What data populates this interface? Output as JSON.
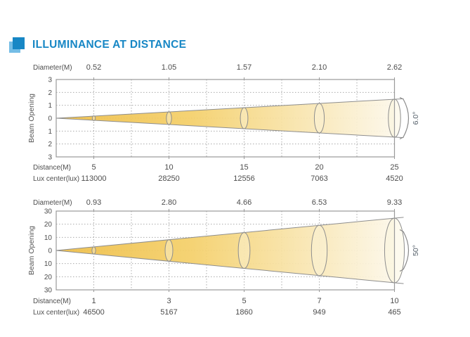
{
  "header": {
    "title": "ILLUMINANCE AT DISTANCE",
    "accent_color": "#1787C5",
    "accent_light_color": "#74BDE6"
  },
  "chart_data": [
    {
      "type": "beam-cone",
      "beam_angle_label": "6.0°",
      "beam_full_angle_deg": 6.0,
      "diameter_row": {
        "label": "Diameter(M)",
        "values": [
          "0.52",
          "1.05",
          "1.57",
          "2.10",
          "2.62"
        ]
      },
      "distance_row": {
        "label": "Distance(M)",
        "values": [
          "5",
          "10",
          "15",
          "20",
          "25"
        ]
      },
      "lux_row": {
        "label": "Lux center(lux)",
        "values": [
          "113000",
          "28250",
          "12556",
          "7063",
          "4520"
        ]
      },
      "ylabel": "Beam Opening",
      "ytick_labels": [
        "3",
        "2",
        "1",
        "0",
        "1",
        "2",
        "3"
      ],
      "grid": true,
      "legend": "none",
      "beam_colors": {
        "start": "#EEBD45",
        "mid": "#F4CF68",
        "end": "#FCF7E9"
      },
      "outline_color": "#8E8E8E",
      "text_color": "#4D4D4D",
      "beam_end_half_ratio": 0.49
    },
    {
      "type": "beam-cone",
      "beam_angle_label": "50°",
      "beam_full_angle_deg": 50,
      "diameter_row": {
        "label": "Diameter(M)",
        "values": [
          "0.93",
          "2.80",
          "4.66",
          "6.53",
          "9.33"
        ]
      },
      "distance_row": {
        "label": "Distance(M)",
        "values": [
          "1",
          "3",
          "5",
          "7",
          "10"
        ]
      },
      "lux_row": {
        "label": "Lux center(lux)",
        "values": [
          "46500",
          "5167",
          "1860",
          "949",
          "465"
        ]
      },
      "ylabel": "Beam Opening",
      "ytick_labels": [
        "30",
        "20",
        "10",
        "0",
        "10",
        "20",
        "30"
      ],
      "grid": true,
      "legend": "none",
      "beam_colors": {
        "start": "#EEBD45",
        "mid": "#F4CF68",
        "end": "#FCF7E9"
      },
      "outline_color": "#8E8E8E",
      "text_color": "#4D4D4D",
      "beam_end_half_ratio": 0.82
    }
  ]
}
